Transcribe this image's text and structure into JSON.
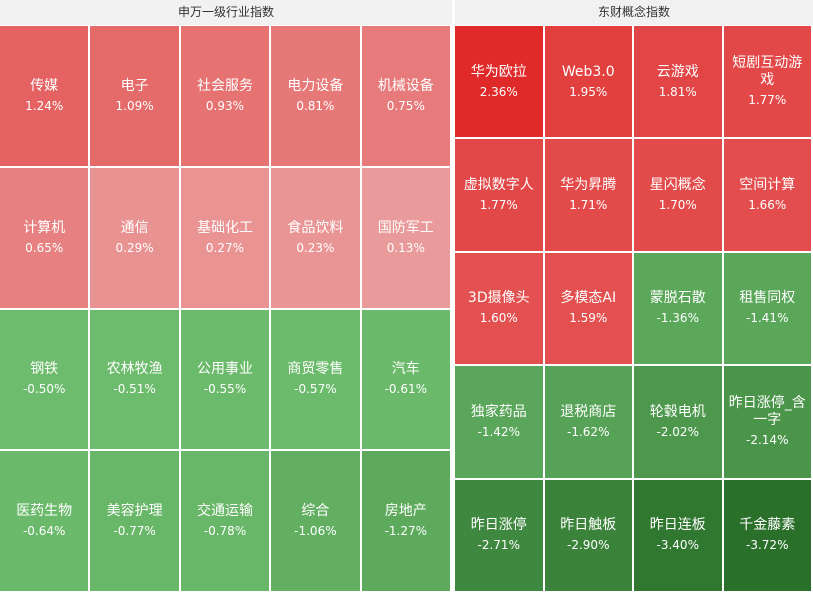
{
  "panels": [
    {
      "title": "申万一级行业指数",
      "cols": 5,
      "tiles": [
        {
          "name": "传媒",
          "pct": "1.24%",
          "value": 1.24
        },
        {
          "name": "电子",
          "pct": "1.09%",
          "value": 1.09
        },
        {
          "name": "社会服务",
          "pct": "0.93%",
          "value": 0.93
        },
        {
          "name": "电力设备",
          "pct": "0.81%",
          "value": 0.81
        },
        {
          "name": "机械设备",
          "pct": "0.75%",
          "value": 0.75
        },
        {
          "name": "计算机",
          "pct": "0.65%",
          "value": 0.65
        },
        {
          "name": "通信",
          "pct": "0.29%",
          "value": 0.29
        },
        {
          "name": "基础化工",
          "pct": "0.27%",
          "value": 0.27
        },
        {
          "name": "食品饮料",
          "pct": "0.23%",
          "value": 0.23
        },
        {
          "name": "国防军工",
          "pct": "0.13%",
          "value": 0.13
        },
        {
          "name": "钢铁",
          "pct": "-0.50%",
          "value": -0.5
        },
        {
          "name": "农林牧渔",
          "pct": "-0.51%",
          "value": -0.51
        },
        {
          "name": "公用事业",
          "pct": "-0.55%",
          "value": -0.55
        },
        {
          "name": "商贸零售",
          "pct": "-0.57%",
          "value": -0.57
        },
        {
          "name": "汽车",
          "pct": "-0.61%",
          "value": -0.61
        },
        {
          "name": "医药生物",
          "pct": "-0.64%",
          "value": -0.64
        },
        {
          "name": "美容护理",
          "pct": "-0.77%",
          "value": -0.77
        },
        {
          "name": "交通运输",
          "pct": "-0.78%",
          "value": -0.78
        },
        {
          "name": "综合",
          "pct": "-1.06%",
          "value": -1.06
        },
        {
          "name": "房地产",
          "pct": "-1.27%",
          "value": -1.27
        }
      ]
    },
    {
      "title": "东财概念指数",
      "cols": 4,
      "tiles": [
        {
          "name": "华为欧拉",
          "pct": "2.36%",
          "value": 2.36
        },
        {
          "name": "Web3.0",
          "pct": "1.95%",
          "value": 1.95
        },
        {
          "name": "云游戏",
          "pct": "1.81%",
          "value": 1.81
        },
        {
          "name": "短剧互动游戏",
          "pct": "1.77%",
          "value": 1.77
        },
        {
          "name": "虚拟数字人",
          "pct": "1.77%",
          "value": 1.77
        },
        {
          "name": "华为昇腾",
          "pct": "1.71%",
          "value": 1.71
        },
        {
          "name": "星闪概念",
          "pct": "1.70%",
          "value": 1.7
        },
        {
          "name": "空间计算",
          "pct": "1.66%",
          "value": 1.66
        },
        {
          "name": "3D摄像头",
          "pct": "1.60%",
          "value": 1.6
        },
        {
          "name": "多模态AI",
          "pct": "1.59%",
          "value": 1.59
        },
        {
          "name": "蒙脱石散",
          "pct": "-1.36%",
          "value": -1.36
        },
        {
          "name": "租售同权",
          "pct": "-1.41%",
          "value": -1.41
        },
        {
          "name": "独家药品",
          "pct": "-1.42%",
          "value": -1.42
        },
        {
          "name": "退税商店",
          "pct": "-1.62%",
          "value": -1.62
        },
        {
          "name": "轮毂电机",
          "pct": "-2.02%",
          "value": -2.02
        },
        {
          "name": "昨日涨停_含一字",
          "pct": "-2.14%",
          "value": -2.14
        },
        {
          "name": "昨日涨停",
          "pct": "-2.71%",
          "value": -2.71
        },
        {
          "name": "昨日触板",
          "pct": "-2.90%",
          "value": -2.9
        },
        {
          "name": "昨日连板",
          "pct": "-3.40%",
          "value": -3.4
        },
        {
          "name": "千金藤素",
          "pct": "-3.72%",
          "value": -3.72
        }
      ]
    }
  ],
  "chart_data": [
    {
      "type": "heatmap",
      "title": "申万一级行业指数",
      "categories": [
        "传媒",
        "电子",
        "社会服务",
        "电力设备",
        "机械设备",
        "计算机",
        "通信",
        "基础化工",
        "食品饮料",
        "国防军工",
        "钢铁",
        "农林牧渔",
        "公用事业",
        "商贸零售",
        "汽车",
        "医药生物",
        "美容护理",
        "交通运输",
        "综合",
        "房地产"
      ],
      "values": [
        1.24,
        1.09,
        0.93,
        0.81,
        0.75,
        0.65,
        0.29,
        0.27,
        0.23,
        0.13,
        -0.5,
        -0.51,
        -0.55,
        -0.57,
        -0.61,
        -0.64,
        -0.77,
        -0.78,
        -1.06,
        -1.27
      ]
    },
    {
      "type": "heatmap",
      "title": "东财概念指数",
      "categories": [
        "华为欧拉",
        "Web3.0",
        "云游戏",
        "短剧互动游戏",
        "虚拟数字人",
        "华为昇腾",
        "星闪概念",
        "空间计算",
        "3D摄像头",
        "多模态AI",
        "蒙脱石散",
        "租售同权",
        "独家药品",
        "退税商店",
        "轮毂电机",
        "昨日涨停_含一字",
        "昨日涨停",
        "昨日触板",
        "昨日连板",
        "千金藤素"
      ],
      "values": [
        2.36,
        1.95,
        1.81,
        1.77,
        1.77,
        1.71,
        1.7,
        1.66,
        1.6,
        1.59,
        -1.36,
        -1.41,
        -1.42,
        -1.62,
        -2.02,
        -2.14,
        -2.71,
        -2.9,
        -3.4,
        -3.72
      ]
    }
  ]
}
